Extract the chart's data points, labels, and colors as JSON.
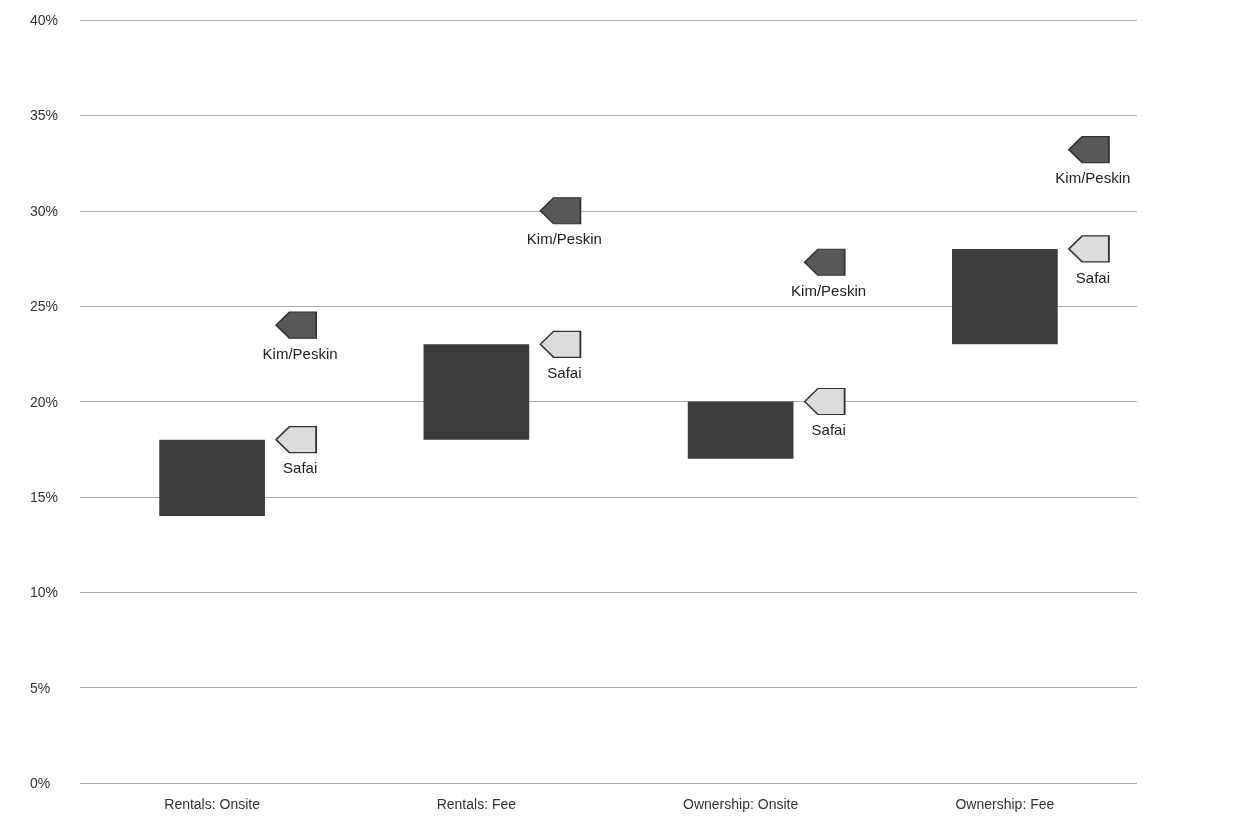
{
  "chart_data": {
    "type": "bar",
    "categories": [
      "Rentals: Onsite",
      "Rentals: Fee",
      "Ownership: Onsite",
      "Ownership: Fee"
    ],
    "series": [
      {
        "color": "#3c3c3c",
        "base": [
          14,
          18,
          17,
          23
        ],
        "values": [
          4,
          5,
          3,
          5
        ]
      },
      {
        "type": "scatter",
        "name": "Kim/Peskin",
        "color": "#585858",
        "x": [
          "Rentals: Onsite",
          "Rentals: Fee",
          "Ownership: Onsite",
          "Ownership: Fee"
        ],
        "values": [
          24,
          30,
          27.3,
          33.2
        ]
      },
      {
        "type": "scatter",
        "name": "Safai",
        "color": "#dcdcdc",
        "x": [
          "Rentals: Onsite",
          "Rentals: Fee",
          "Ownership: Onsite",
          "Ownership: Fee"
        ],
        "values": [
          18,
          23,
          20,
          28
        ]
      }
    ],
    "ylim": [
      0,
      40
    ],
    "yticks": [
      {
        "value": 0,
        "label": "0%"
      },
      {
        "value": 5,
        "label": "5%"
      },
      {
        "value": 10,
        "label": "10%"
      },
      {
        "value": 15,
        "label": "15%"
      },
      {
        "value": 20,
        "label": "20%"
      },
      {
        "value": 25,
        "label": "25%"
      },
      {
        "value": 30,
        "label": "30%"
      },
      {
        "value": 35,
        "label": "35%"
      },
      {
        "value": 40,
        "label": "40%"
      }
    ],
    "grid": "y",
    "legend": false
  }
}
